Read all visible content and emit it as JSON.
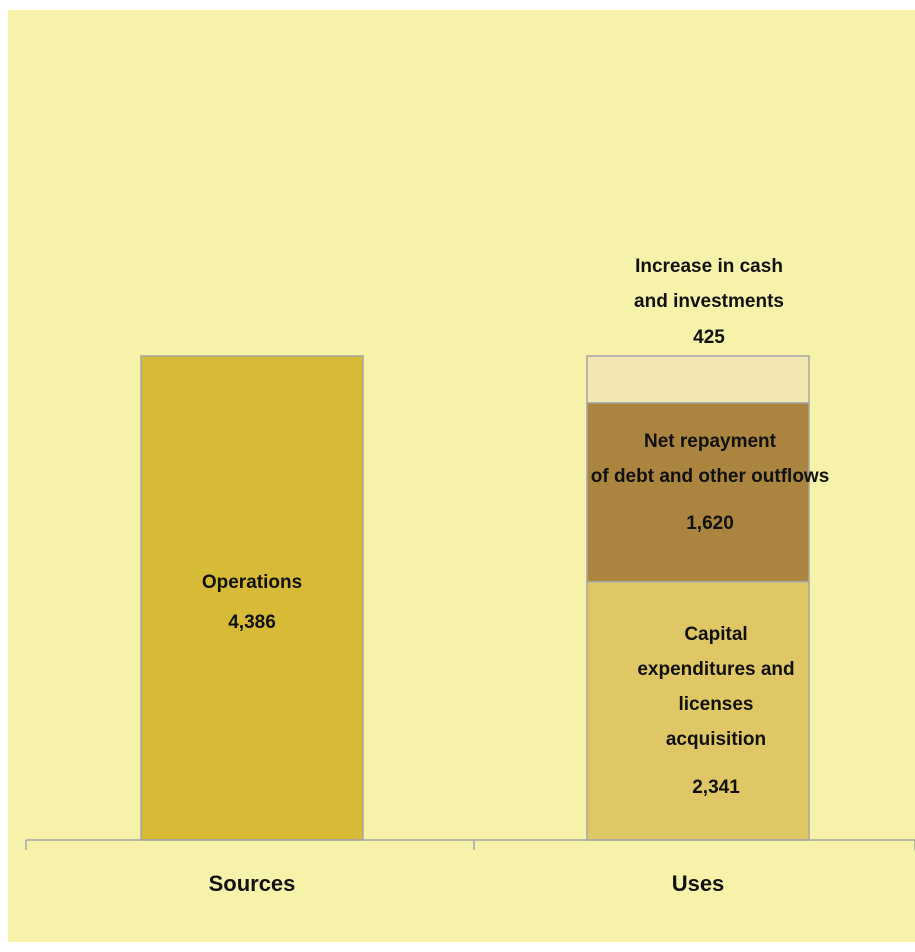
{
  "chart_data": {
    "type": "bar",
    "stacked": true,
    "categories": [
      "Sources",
      "Uses"
    ],
    "ylim": [
      0,
      6200
    ],
    "grid": false,
    "legend": "none",
    "series": [
      {
        "category": "Sources",
        "label_lines": [
          "Operations"
        ],
        "value": 4386,
        "value_label": "4,386",
        "color": "#D7BB37"
      },
      {
        "category": "Uses",
        "label_lines": [
          "Capital",
          "expenditures and",
          "licenses",
          "acquisition"
        ],
        "value": 2341,
        "value_label": "2,341",
        "color": "#E0C765"
      },
      {
        "category": "Uses",
        "label_lines": [
          "Net repayment",
          "of debt and other outflows"
        ],
        "value": 1620,
        "value_label": "1,620",
        "color": "#AB8540"
      },
      {
        "category": "Uses",
        "label_lines": [
          "Increase in cash",
          "and  investments"
        ],
        "value": 425,
        "value_label": "425",
        "color": "#F2E6B2"
      }
    ],
    "background": "#F7F2A9"
  }
}
